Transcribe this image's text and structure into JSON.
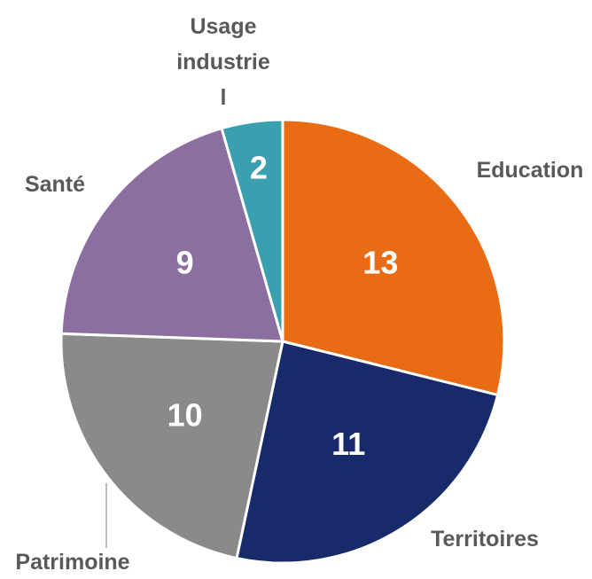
{
  "chart_data": {
    "type": "pie",
    "categories": [
      "Education",
      "Territoires",
      "Patrimoine",
      "Santé",
      "Usage industriel"
    ],
    "values": [
      13,
      11,
      10,
      9,
      2
    ],
    "colors": [
      "#e96c14",
      "#172a6a",
      "#8a8a8a",
      "#8b6fa0",
      "#3aa0b0"
    ]
  }
}
